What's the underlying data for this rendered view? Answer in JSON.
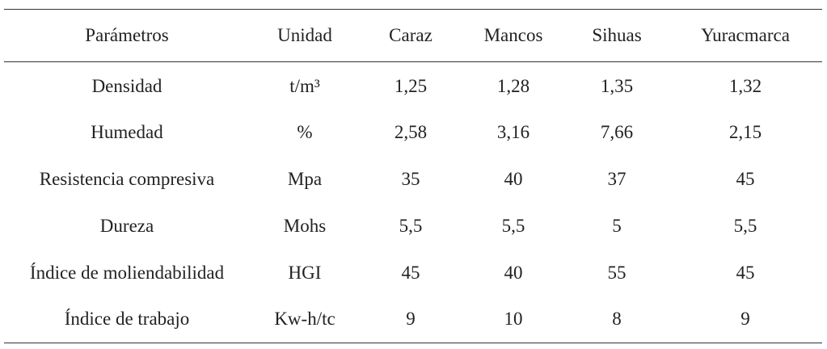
{
  "table": {
    "headers": [
      "Parámetros",
      "Unidad",
      "Caraz",
      "Mancos",
      "Sihuas",
      "Yuracmarca"
    ],
    "rows": [
      [
        "Densidad",
        "t/m³",
        "1,25",
        "1,28",
        "1,35",
        "1,32"
      ],
      [
        "Humedad",
        "%",
        "2,58",
        "3,16",
        "7,66",
        "2,15"
      ],
      [
        "Resistencia compresiva",
        "Mpa",
        "35",
        "40",
        "37",
        "45"
      ],
      [
        "Dureza",
        "Mohs",
        "5,5",
        "5,5",
        "5",
        "5,5"
      ],
      [
        "Índice de moliendabilidad",
        "HGI",
        "45",
        "40",
        "55",
        "45"
      ],
      [
        "Índice de trabajo",
        "Kw-h/tc",
        "9",
        "10",
        "8",
        "9"
      ]
    ]
  }
}
